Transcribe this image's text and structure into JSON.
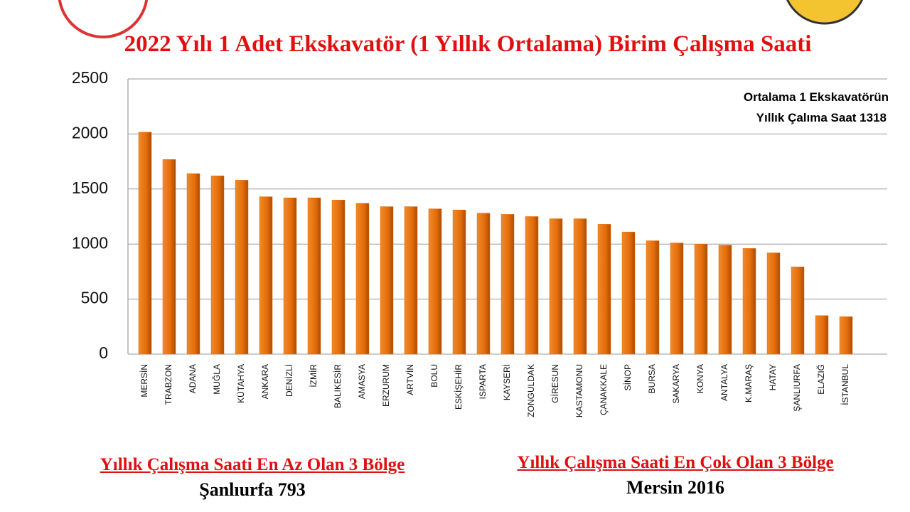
{
  "chart_data": {
    "type": "bar",
    "title": "2022 Yılı 1 Adet Ekskavatör (1 Yıllık Ortalama) Birim Çalışma Saati",
    "categories": [
      "MERSİN",
      "TRABZON",
      "ADANA",
      "MUĞLA",
      "KÜTAHYA",
      "ANKARA",
      "DENİZLİ",
      "İZMİR",
      "BALIKESİR",
      "AMASYA",
      "ERZURUM",
      "ARTVİN",
      "BOLU",
      "ESKİŞEHİR",
      "ISPARTA",
      "KAYSERİ",
      "ZONGULDAK",
      "GİRESUN",
      "KASTAMONU",
      "ÇANAKKALE",
      "SİNOP",
      "BURSA",
      "SAKARYA",
      "KONYA",
      "ANTALYA",
      "K.MARAŞ",
      "HATAY",
      "ŞANLIURFA",
      "ELAZIĞ",
      "İSTANBUL"
    ],
    "values": [
      2016,
      1768,
      1640,
      1620,
      1580,
      1430,
      1420,
      1420,
      1400,
      1370,
      1340,
      1340,
      1320,
      1310,
      1280,
      1270,
      1250,
      1230,
      1230,
      1180,
      1110,
      1030,
      1010,
      1000,
      990,
      960,
      920,
      793,
      350,
      340
    ],
    "color": "#e46c0a",
    "ylim": [
      0,
      2500
    ],
    "yticks": [
      0,
      500,
      1000,
      1500,
      2000,
      2500
    ],
    "grid": true,
    "annotation": [
      "Ortalama 1 Ekskavatörün",
      "Yıllık Çalıma  Saat 1318"
    ],
    "footer_left_title": "Yıllık Çalışma Saati En Az Olan 3 Bölge",
    "footer_left_lines": [
      "Şanlıurfa 793"
    ],
    "footer_right_title": "Yıllık Çalışma Saati En Çok Olan 3 Bölge",
    "footer_right_lines": [
      "Mersin 2016"
    ]
  }
}
